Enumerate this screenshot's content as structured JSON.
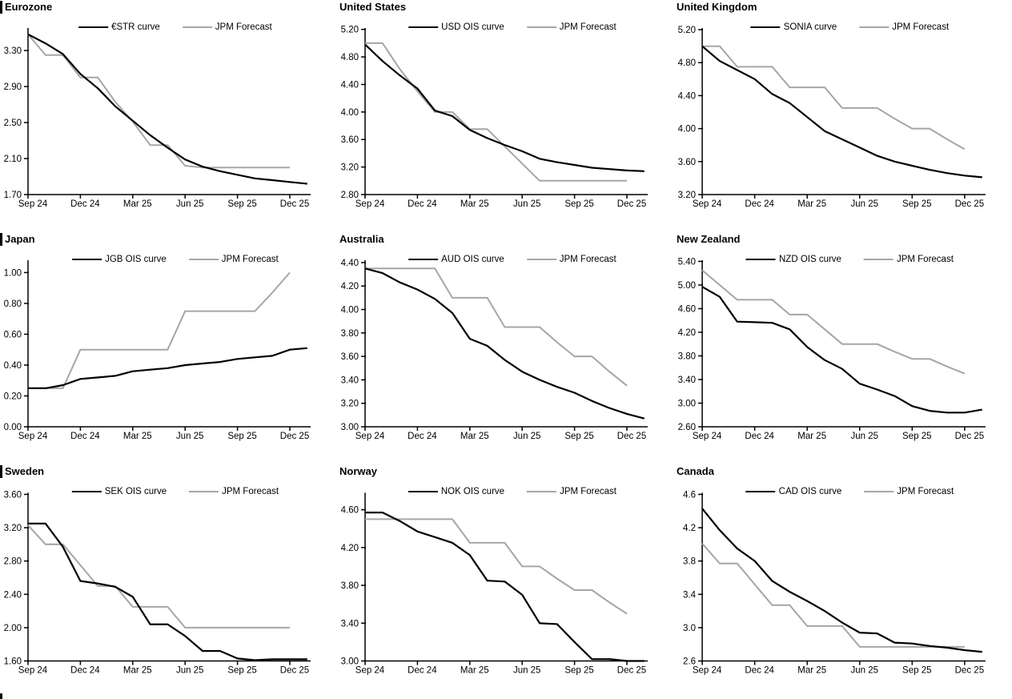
{
  "page": {
    "background": "#ffffff"
  },
  "x_axis": {
    "tick_labels": [
      "Sep 24",
      "Dec 24",
      "Mar 25",
      "Jun 25",
      "Sep 25",
      "Dec 25"
    ],
    "tick_month_indices": [
      0,
      3,
      6,
      9,
      12,
      15
    ],
    "months_total": 17
  },
  "chart_data": [
    {
      "type": "line",
      "title": "Eurozone",
      "section_bar": true,
      "ylim": [
        1.7,
        3.55
      ],
      "yticks": [
        1.7,
        2.1,
        2.5,
        2.9,
        3.3
      ],
      "ytick_labels": [
        "1.70",
        "2.10",
        "2.50",
        "2.90",
        "3.30"
      ],
      "legend_position": "top-center",
      "grid": false,
      "series": [
        {
          "name": "€STR curve",
          "color": "#000000",
          "values": [
            3.48,
            3.38,
            3.26,
            3.04,
            2.88,
            2.68,
            2.52,
            2.36,
            2.22,
            2.09,
            2.01,
            1.96,
            1.92,
            1.88,
            1.86,
            1.84,
            1.82
          ]
        },
        {
          "name": "JPM Forecast",
          "color": "#a6a6a6",
          "values": [
            3.48,
            3.25,
            3.25,
            3.0,
            3.0,
            2.73,
            2.51,
            2.25,
            2.25,
            2.02,
            2.0,
            2.0,
            2.0,
            2.0,
            2.0,
            2.0
          ]
        }
      ]
    },
    {
      "type": "line",
      "title": "United States",
      "section_bar": false,
      "ylim": [
        2.8,
        5.22
      ],
      "yticks": [
        2.8,
        3.2,
        3.6,
        4.0,
        4.4,
        4.8,
        5.2
      ],
      "ytick_labels": [
        "2.80",
        "3.20",
        "3.60",
        "4.00",
        "4.40",
        "4.80",
        "5.20"
      ],
      "legend_position": "top-center",
      "grid": false,
      "series": [
        {
          "name": "USD OIS curve",
          "color": "#000000",
          "values": [
            4.98,
            4.74,
            4.53,
            4.34,
            4.02,
            3.94,
            3.74,
            3.62,
            3.52,
            3.43,
            3.32,
            3.27,
            3.23,
            3.19,
            3.17,
            3.15,
            3.14
          ]
        },
        {
          "name": "JPM Forecast",
          "color": "#a6a6a6",
          "values": [
            5.0,
            5.0,
            4.62,
            4.3,
            4.0,
            4.0,
            3.75,
            3.75,
            3.5,
            3.25,
            3.0,
            3.0,
            3.0,
            3.0,
            3.0,
            3.0
          ]
        }
      ]
    },
    {
      "type": "line",
      "title": "United Kingdom",
      "section_bar": false,
      "ylim": [
        3.2,
        5.22
      ],
      "yticks": [
        3.2,
        3.6,
        4.0,
        4.4,
        4.8,
        5.2
      ],
      "ytick_labels": [
        "3.20",
        "3.60",
        "4.00",
        "4.40",
        "4.80",
        "5.20"
      ],
      "legend_position": "top-center",
      "grid": false,
      "series": [
        {
          "name": "SONIA curve",
          "color": "#000000",
          "values": [
            5.0,
            4.82,
            4.71,
            4.6,
            4.42,
            4.31,
            4.14,
            3.97,
            3.87,
            3.77,
            3.67,
            3.6,
            3.55,
            3.5,
            3.46,
            3.43,
            3.41
          ]
        },
        {
          "name": "JPM Forecast",
          "color": "#a6a6a6",
          "values": [
            5.0,
            5.0,
            4.75,
            4.75,
            4.75,
            4.5,
            4.5,
            4.5,
            4.25,
            4.25,
            4.25,
            4.12,
            4.0,
            4.0,
            3.87,
            3.75
          ]
        }
      ]
    },
    {
      "type": "line",
      "title": "Japan",
      "section_bar": true,
      "ylim": [
        0.0,
        1.08
      ],
      "yticks": [
        0.0,
        0.2,
        0.4,
        0.6,
        0.8,
        1.0
      ],
      "ytick_labels": [
        "0.00",
        "0.20",
        "0.40",
        "0.60",
        "0.80",
        "1.00"
      ],
      "legend_position": "top-center",
      "grid": false,
      "series": [
        {
          "name": "JGB OIS curve",
          "color": "#000000",
          "values": [
            0.25,
            0.25,
            0.27,
            0.31,
            0.32,
            0.33,
            0.36,
            0.37,
            0.38,
            0.4,
            0.41,
            0.42,
            0.44,
            0.45,
            0.46,
            0.5,
            0.51
          ]
        },
        {
          "name": "JPM Forecast",
          "color": "#a6a6a6",
          "values": [
            0.25,
            0.25,
            0.25,
            0.5,
            0.5,
            0.5,
            0.5,
            0.5,
            0.5,
            0.75,
            0.75,
            0.75,
            0.75,
            0.75,
            0.87,
            1.0
          ]
        }
      ]
    },
    {
      "type": "line",
      "title": "Australia",
      "section_bar": false,
      "ylim": [
        3.0,
        4.42
      ],
      "yticks": [
        3.0,
        3.2,
        3.4,
        3.6,
        3.8,
        4.0,
        4.2,
        4.4
      ],
      "ytick_labels": [
        "3.00",
        "3.20",
        "3.40",
        "3.60",
        "3.80",
        "4.00",
        "4.20",
        "4.40"
      ],
      "legend_position": "top-center",
      "grid": false,
      "series": [
        {
          "name": "AUD OIS curve",
          "color": "#000000",
          "values": [
            4.35,
            4.31,
            4.23,
            4.17,
            4.09,
            3.97,
            3.75,
            3.69,
            3.57,
            3.47,
            3.4,
            3.34,
            3.29,
            3.22,
            3.16,
            3.11,
            3.07
          ]
        },
        {
          "name": "JPM Forecast",
          "color": "#a6a6a6",
          "values": [
            4.35,
            4.35,
            4.35,
            4.35,
            4.35,
            4.1,
            4.1,
            4.1,
            3.85,
            3.85,
            3.85,
            3.72,
            3.6,
            3.6,
            3.47,
            3.35
          ]
        }
      ]
    },
    {
      "type": "line",
      "title": "New Zealand",
      "section_bar": false,
      "ylim": [
        2.6,
        5.42
      ],
      "yticks": [
        2.6,
        3.0,
        3.4,
        3.8,
        4.2,
        4.6,
        5.0,
        5.4
      ],
      "ytick_labels": [
        "2.60",
        "3.00",
        "3.40",
        "3.80",
        "4.20",
        "4.60",
        "5.00",
        "5.40"
      ],
      "legend_position": "top-center",
      "grid": false,
      "series": [
        {
          "name": "NZD OIS curve",
          "color": "#000000",
          "values": [
            4.97,
            4.8,
            4.38,
            4.37,
            4.36,
            4.25,
            3.95,
            3.73,
            3.58,
            3.33,
            3.23,
            3.12,
            2.95,
            2.87,
            2.84,
            2.84,
            2.89
          ]
        },
        {
          "name": "JPM Forecast",
          "color": "#a6a6a6",
          "values": [
            5.25,
            5.0,
            4.75,
            4.75,
            4.75,
            4.5,
            4.5,
            4.25,
            4.0,
            4.0,
            4.0,
            3.87,
            3.75,
            3.75,
            3.62,
            3.5
          ]
        }
      ]
    },
    {
      "type": "line",
      "title": "Sweden",
      "section_bar": true,
      "ylim": [
        1.6,
        3.62
      ],
      "yticks": [
        1.6,
        2.0,
        2.4,
        2.8,
        3.2,
        3.6
      ],
      "ytick_labels": [
        "1.60",
        "2.00",
        "2.40",
        "2.80",
        "3.20",
        "3.60"
      ],
      "legend_position": "top-center",
      "grid": false,
      "series": [
        {
          "name": "SEK OIS curve",
          "color": "#000000",
          "values": [
            3.25,
            3.25,
            2.97,
            2.56,
            2.53,
            2.49,
            2.37,
            2.04,
            2.04,
            1.9,
            1.72,
            1.72,
            1.63,
            1.61,
            1.62,
            1.62,
            1.62
          ]
        },
        {
          "name": "JPM Forecast",
          "color": "#a6a6a6",
          "values": [
            3.23,
            3.0,
            3.0,
            2.75,
            2.5,
            2.5,
            2.25,
            2.25,
            2.25,
            2.0,
            2.0,
            2.0,
            2.0,
            2.0,
            2.0,
            2.0
          ]
        }
      ]
    },
    {
      "type": "line",
      "title": "Norway",
      "section_bar": false,
      "ylim": [
        3.0,
        4.78
      ],
      "yticks": [
        3.0,
        3.4,
        3.8,
        4.2,
        4.6
      ],
      "ytick_labels": [
        "3.00",
        "3.40",
        "3.80",
        "4.20",
        "4.60"
      ],
      "legend_position": "top-center",
      "grid": false,
      "series": [
        {
          "name": "NOK OIS curve",
          "color": "#000000",
          "values": [
            4.57,
            4.57,
            4.48,
            4.37,
            4.31,
            4.25,
            4.12,
            3.85,
            3.84,
            3.7,
            3.4,
            3.39,
            3.2,
            3.02,
            3.02,
            3.0,
            3.0
          ]
        },
        {
          "name": "JPM Forecast",
          "color": "#a6a6a6",
          "values": [
            4.5,
            4.5,
            4.5,
            4.5,
            4.5,
            4.5,
            4.25,
            4.25,
            4.25,
            4.0,
            4.0,
            3.87,
            3.75,
            3.75,
            3.62,
            3.5
          ]
        }
      ]
    },
    {
      "type": "line",
      "title": "Canada",
      "section_bar": false,
      "ylim": [
        2.6,
        4.62
      ],
      "yticks": [
        2.6,
        3.0,
        3.4,
        3.8,
        4.2,
        4.6
      ],
      "ytick_labels": [
        "2.6",
        "3.0",
        "3.4",
        "3.8",
        "4.2",
        "4.6"
      ],
      "legend_position": "top-center",
      "grid": false,
      "series": [
        {
          "name": "CAD OIS curve",
          "color": "#000000",
          "values": [
            4.43,
            4.17,
            3.95,
            3.8,
            3.56,
            3.43,
            3.32,
            3.2,
            3.06,
            2.94,
            2.93,
            2.82,
            2.81,
            2.78,
            2.76,
            2.73,
            2.71
          ]
        },
        {
          "name": "JPM Forecast",
          "color": "#a6a6a6",
          "values": [
            4.01,
            3.77,
            3.77,
            3.52,
            3.27,
            3.27,
            3.02,
            3.02,
            3.02,
            2.77,
            2.77,
            2.77,
            2.77,
            2.77,
            2.77,
            2.77
          ]
        }
      ]
    }
  ]
}
